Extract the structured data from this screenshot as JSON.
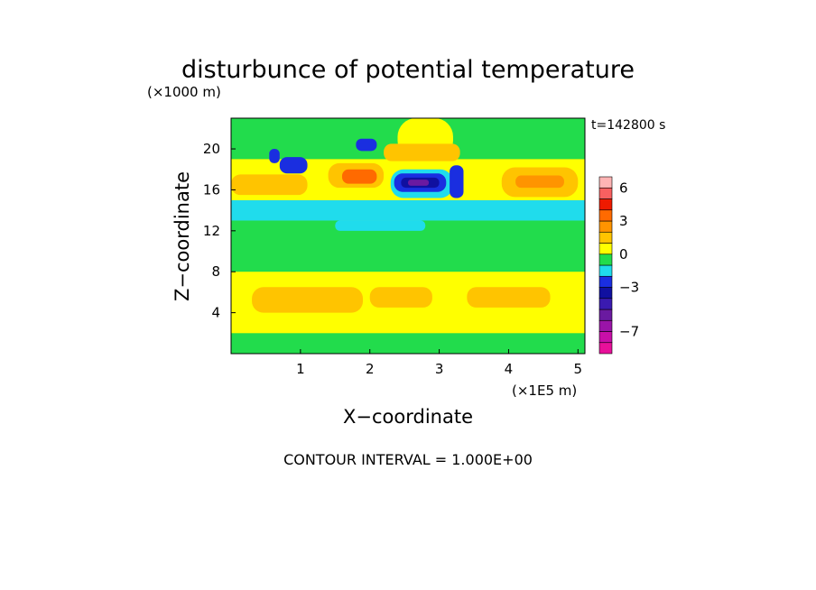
{
  "chart_data": {
    "type": "heatmap",
    "title": "disturbunce of potential temperature",
    "y_unit": "(×1000 m)",
    "x_unit": "(×1E5 m)",
    "xlabel": "X−coordinate",
    "ylabel": "Z−coordinate",
    "time_label": "t=142800 s",
    "footer": "CONTOUR INTERVAL = 1.000E+00",
    "xlim": [
      0,
      5.1
    ],
    "ylim": [
      0,
      23
    ],
    "x_ticks": [
      1,
      2,
      3,
      4,
      5
    ],
    "y_ticks": [
      4,
      8,
      12,
      16,
      20
    ],
    "colorbar": {
      "levels": [
        -9,
        -8,
        -7,
        -6,
        -5,
        -4,
        -3,
        -2,
        -1,
        0,
        1,
        2,
        3,
        4,
        5,
        6,
        7
      ],
      "colors": [
        "#e8109a",
        "#c80fa8",
        "#9a14a8",
        "#6a1aa0",
        "#3a1ab0",
        "#1010a0",
        "#1a2ee0",
        "#20dcec",
        "#22dc4c",
        "#ffff00",
        "#ffc400",
        "#ff9400",
        "#ff6a00",
        "#ee1a00",
        "#f86060",
        "#ffb4b4"
      ],
      "tick_labels": [
        {
          "value": 6,
          "label": "6"
        },
        {
          "value": 3,
          "label": "3"
        },
        {
          "value": 0,
          "label": "0"
        },
        {
          "value": -3,
          "label": "−3"
        },
        {
          "value": -7,
          "label": "−7"
        }
      ]
    },
    "z_description": "Layered bands of temperature disturbance with positive anomalies near Z=16-18 km and negative cores near X=2.5-3.2, Z=17",
    "regions": [
      {
        "x0": 0,
        "x1": 5.1,
        "y0": 0,
        "y1": 23,
        "value": 0.5
      },
      {
        "x0": 0,
        "x1": 5.1,
        "y0": 0,
        "y1": 2,
        "value": -0.5
      },
      {
        "x0": 0,
        "x1": 5.1,
        "y0": 3,
        "y1": 8,
        "value": 0.5
      },
      {
        "x0": 0.3,
        "x1": 1.9,
        "y0": 4,
        "y1": 6.5,
        "value": 1.5
      },
      {
        "x0": 2.0,
        "x1": 2.9,
        "y0": 4.5,
        "y1": 6.5,
        "value": 1.5
      },
      {
        "x0": 3.4,
        "x1": 4.6,
        "y0": 4.5,
        "y1": 6.5,
        "value": 1.5
      },
      {
        "x0": 0,
        "x1": 5.1,
        "y0": 8,
        "y1": 13,
        "value": -0.5
      },
      {
        "x0": 0,
        "x1": 5.1,
        "y0": 13,
        "y1": 15,
        "value": -1.5
      },
      {
        "x0": 1.5,
        "x1": 2.8,
        "y0": 12,
        "y1": 13,
        "value": -1.5
      },
      {
        "x0": 0,
        "x1": 5.1,
        "y0": 15,
        "y1": 19,
        "value": 0.5
      },
      {
        "x0": 0,
        "x1": 5.1,
        "y0": 19,
        "y1": 23,
        "value": -0.5
      },
      {
        "x0": 2.4,
        "x1": 3.2,
        "y0": 19,
        "y1": 23,
        "value": 0.5
      },
      {
        "x0": 0,
        "x1": 1.1,
        "y0": 15.5,
        "y1": 17.5,
        "value": 1.5
      },
      {
        "x0": 3.9,
        "x1": 5.0,
        "y0": 15.3,
        "y1": 18.2,
        "value": 1.5
      },
      {
        "x0": 4.1,
        "x1": 4.8,
        "y0": 16.2,
        "y1": 17.4,
        "value": 2.5
      },
      {
        "x0": 1.4,
        "x1": 2.2,
        "y0": 16.2,
        "y1": 18.6,
        "value": 1.5
      },
      {
        "x0": 1.6,
        "x1": 2.1,
        "y0": 16.6,
        "y1": 18.0,
        "value": 3.5
      },
      {
        "x0": 2.2,
        "x1": 3.3,
        "y0": 18.8,
        "y1": 20.5,
        "value": 1.5
      },
      {
        "x0": 2.3,
        "x1": 3.2,
        "y0": 15.2,
        "y1": 18.0,
        "value": -1.5
      },
      {
        "x0": 2.35,
        "x1": 3.1,
        "y0": 15.8,
        "y1": 17.6,
        "value": -2.5
      },
      {
        "x0": 2.45,
        "x1": 3.0,
        "y0": 16.2,
        "y1": 17.2,
        "value": -3.5
      },
      {
        "x0": 2.55,
        "x1": 2.85,
        "y0": 16.4,
        "y1": 17.0,
        "value": -5.5
      },
      {
        "x0": 0.7,
        "x1": 1.1,
        "y0": 17.6,
        "y1": 19.2,
        "value": -2.5
      },
      {
        "x0": 0.55,
        "x1": 0.7,
        "y0": 18.6,
        "y1": 20.0,
        "value": -2.5
      },
      {
        "x0": 1.8,
        "x1": 2.1,
        "y0": 19.8,
        "y1": 21.0,
        "value": -2.5
      },
      {
        "x0": 3.15,
        "x1": 3.35,
        "y0": 15.2,
        "y1": 18.4,
        "value": -2.5
      }
    ]
  }
}
